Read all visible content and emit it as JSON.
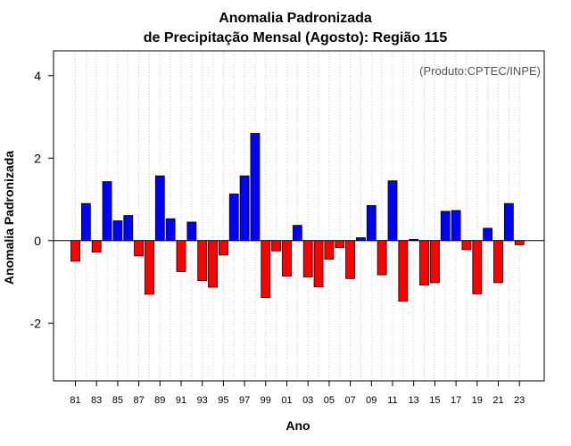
{
  "chart_data": {
    "type": "bar",
    "title": "Anomalia Padronizada",
    "subtitle": "de Precipitação Mensal (Agosto): Região 115",
    "xlabel": "Ano",
    "ylabel": "Anomalia Padronizada",
    "annotation": "(Produto:CPTEC/INPE)",
    "ylim": [
      -3.4,
      4.6
    ],
    "yticks": [
      -2,
      0,
      2,
      4
    ],
    "yticklabels": [
      "-2",
      "0",
      "2",
      "4"
    ],
    "grid": "vertical dotted lines at each year",
    "colors": {
      "positive": "#0000ff",
      "negative": "#ff0000",
      "outline": "#000000"
    },
    "categories": [
      "81",
      "82",
      "83",
      "84",
      "85",
      "86",
      "87",
      "88",
      "89",
      "90",
      "91",
      "92",
      "93",
      "94",
      "95",
      "96",
      "97",
      "98",
      "99",
      "00",
      "01",
      "02",
      "03",
      "04",
      "05",
      "06",
      "07",
      "08",
      "09",
      "10",
      "11",
      "12",
      "13",
      "14",
      "15",
      "16",
      "17",
      "18",
      "19",
      "20",
      "21",
      "22",
      "23"
    ],
    "xticklabels": [
      "81",
      "83",
      "85",
      "87",
      "89",
      "91",
      "93",
      "95",
      "97",
      "99",
      "01",
      "03",
      "05",
      "07",
      "09",
      "11",
      "13",
      "15",
      "17",
      "19",
      "21",
      "23"
    ],
    "values": [
      -0.5,
      0.9,
      -0.28,
      1.43,
      0.48,
      0.61,
      -0.37,
      -1.3,
      1.57,
      0.53,
      -0.75,
      0.45,
      -0.97,
      -1.13,
      -0.35,
      1.13,
      1.57,
      2.6,
      -1.38,
      -0.25,
      -0.86,
      0.37,
      -0.88,
      -1.12,
      -0.45,
      -0.17,
      -0.92,
      0.07,
      0.85,
      -0.83,
      1.45,
      -1.47,
      0.03,
      -1.08,
      -1.02,
      0.71,
      0.73,
      -0.22,
      -1.29,
      0.3,
      -1.02,
      0.9,
      -0.1
    ]
  }
}
